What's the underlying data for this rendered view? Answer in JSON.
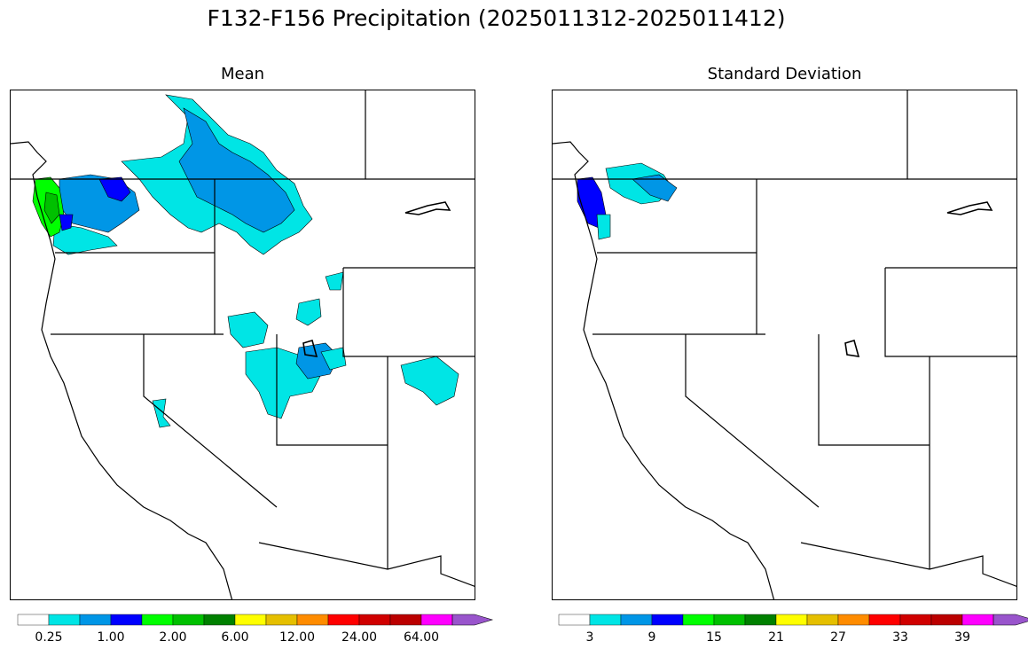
{
  "title": "F132-F156 Precipitation (2025011312-2025011412)",
  "panels": [
    {
      "id": "mean",
      "title": "Mean",
      "colorbar": {
        "colors": [
          "#ffffff",
          "#00e5e5",
          "#0096e6",
          "#0000ff",
          "#00ff00",
          "#00c000",
          "#008000",
          "#ffff00",
          "#e5bf00",
          "#ff8c00",
          "#ff0000",
          "#d00000",
          "#bb0000",
          "#ff00ff",
          "#9955cc"
        ],
        "tick_labels": [
          "0.25",
          "1.00",
          "2.00",
          "6.00",
          "12.00",
          "24.00",
          "64.00"
        ],
        "extend": "max"
      }
    },
    {
      "id": "stddev",
      "title": "Standard Deviation",
      "colorbar": {
        "colors": [
          "#ffffff",
          "#00e5e5",
          "#0096e6",
          "#0000ff",
          "#00ff00",
          "#00c000",
          "#008000",
          "#ffff00",
          "#e5bf00",
          "#ff8c00",
          "#ff0000",
          "#d00000",
          "#bb0000",
          "#ff00ff",
          "#9955cc"
        ],
        "tick_labels": [
          "3",
          "9",
          "15",
          "21",
          "27",
          "33",
          "39"
        ],
        "extend": "max"
      }
    }
  ],
  "map_colors": {
    "land_fill": "#ffffff",
    "water": "#ffffff",
    "boundary": "#000000",
    "light_cyan": "#00e5e5",
    "mid_blue": "#0096e6",
    "blue": "#0000ff",
    "green": "#00ff00",
    "dark_green": "#00c000"
  }
}
